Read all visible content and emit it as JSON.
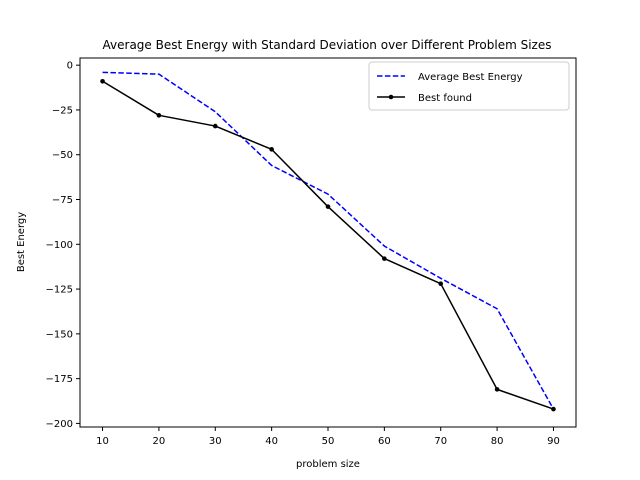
{
  "chart_data": {
    "type": "line",
    "title": "Average Best Energy with Standard Deviation over Different Problem Sizes",
    "xlabel": "problem size",
    "ylabel": "Best Energy",
    "x": [
      10,
      20,
      30,
      40,
      50,
      60,
      70,
      80,
      90
    ],
    "xticks": [
      10,
      20,
      30,
      40,
      50,
      60,
      70,
      80,
      90
    ],
    "yticks": [
      0,
      -25,
      -50,
      -75,
      -100,
      -125,
      -150,
      -175,
      -200
    ],
    "xlim": [
      6,
      94
    ],
    "ylim": [
      -202,
      4
    ],
    "grid": false,
    "legend_position": "top-right",
    "series": [
      {
        "name": "Average Best Energy",
        "style": "dashed",
        "color": "#0000ff",
        "values": [
          -4,
          -5,
          -26,
          -56,
          -72,
          -101,
          -119,
          -136,
          -192
        ]
      },
      {
        "name": "Best found",
        "style": "solid-markers",
        "color": "#000000",
        "values": [
          -9,
          -28,
          -34,
          -47,
          -79,
          -108,
          -122,
          -181,
          -192
        ]
      }
    ]
  }
}
